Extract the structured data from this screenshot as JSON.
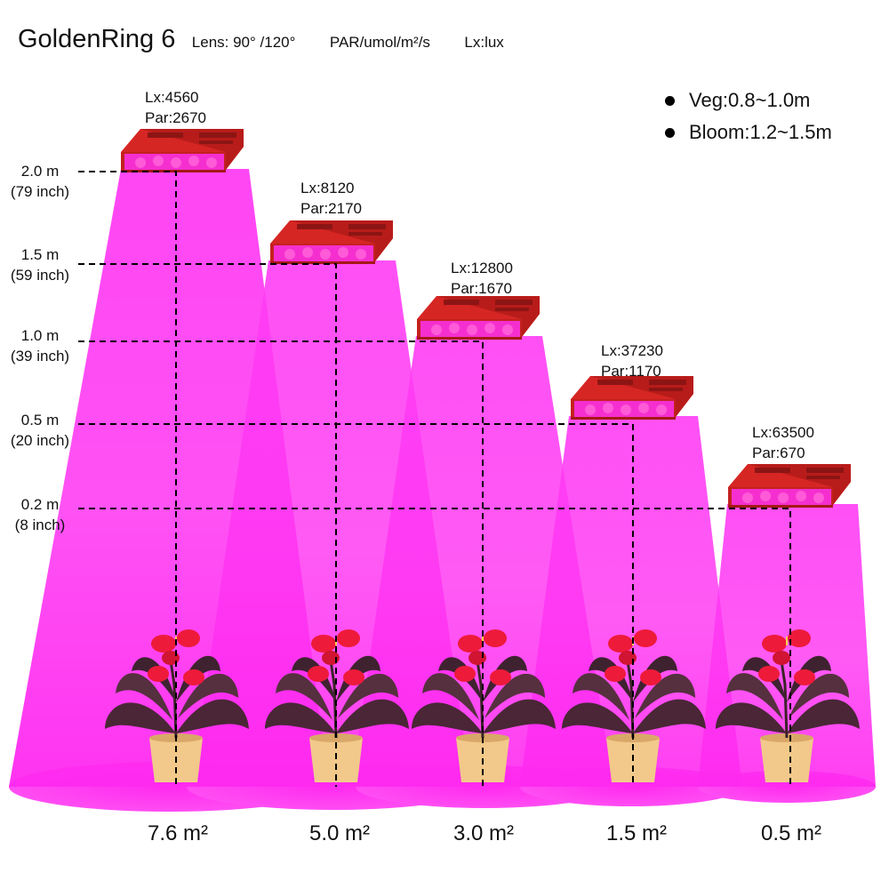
{
  "header": {
    "model": "GoldenRing 6",
    "lens": "Lens:  90°  /120°",
    "par_unit": "PAR/umol/m²/s",
    "lux_unit": "Lx:lux"
  },
  "legend": {
    "veg": "Veg:0.8~1.0m",
    "bloom": "Bloom:1.2~1.5m"
  },
  "heights": [
    {
      "m": "2.0 m",
      "inch": "(79 inch)"
    },
    {
      "m": "1.5 m",
      "inch": "(59 inch)"
    },
    {
      "m": "1.0 m",
      "inch": "(39 inch)"
    },
    {
      "m": "0.5 m",
      "inch": "(20 inch)"
    },
    {
      "m": "0.2 m",
      "inch": "(8 inch)"
    }
  ],
  "readings": [
    {
      "lx": "Lx:4560",
      "par": "Par:2670"
    },
    {
      "lx": "Lx:8120",
      "par": "Par:2170"
    },
    {
      "lx": "Lx:12800",
      "par": "Par:1670"
    },
    {
      "lx": "Lx:37230",
      "par": "Par:1170"
    },
    {
      "lx": "Lx:63500",
      "par": "Par:670"
    }
  ],
  "areas": [
    "7.6 m²",
    "5.0 m²",
    "3.0 m²",
    "1.5 m²",
    "0.5 m²"
  ],
  "colors": {
    "beam": "#ff2cf0",
    "ground_pool": "#ff3df2",
    "lamp_body": "#d62624",
    "lamp_face": "#f52fcf",
    "pot": "#f2c98a",
    "leaf": "#4a2636",
    "bloom": "#ee1a3a"
  }
}
